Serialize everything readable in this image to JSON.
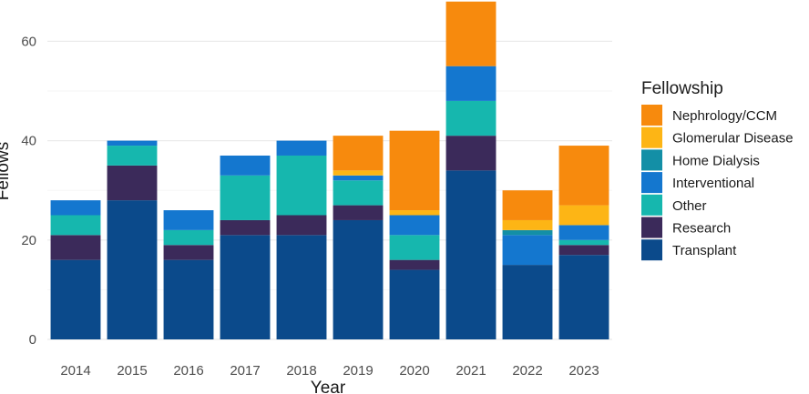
{
  "chart_data": {
    "type": "bar",
    "stacked": true,
    "title": "",
    "xlabel": "Year",
    "ylabel": "Fellows",
    "ylim": [
      0,
      68
    ],
    "yticks": [
      0,
      20,
      40,
      60
    ],
    "grid": true,
    "categories": [
      "2014",
      "2015",
      "2016",
      "2017",
      "2018",
      "2019",
      "2020",
      "2021",
      "2022",
      "2023"
    ],
    "legend_title": "Fellowship",
    "legend_position": "right",
    "series": [
      {
        "name": "Transplant",
        "color": "#0b4a8b",
        "values": [
          16,
          28,
          16,
          21,
          21,
          24,
          14,
          34,
          15,
          17
        ]
      },
      {
        "name": "Research",
        "color": "#3b2a5a",
        "values": [
          5,
          7,
          3,
          3,
          4,
          3,
          2,
          7,
          0,
          2
        ]
      },
      {
        "name": "Other",
        "color": "#16b7ae",
        "values": [
          4,
          4,
          3,
          9,
          12,
          5,
          5,
          7,
          0,
          1
        ]
      },
      {
        "name": "Interventional",
        "color": "#1477cf",
        "values": [
          3,
          1,
          4,
          4,
          3,
          1,
          4,
          7,
          6,
          3
        ]
      },
      {
        "name": "Home Dialysis",
        "color": "#138fa6",
        "values": [
          0,
          0,
          0,
          0,
          0,
          0,
          0,
          0,
          1,
          0
        ]
      },
      {
        "name": "Glomerular Disease",
        "color": "#fdb515",
        "values": [
          0,
          0,
          0,
          0,
          0,
          1,
          1,
          0,
          2,
          4
        ]
      },
      {
        "name": "Nephrology/CCM",
        "color": "#f78a0d",
        "values": [
          0,
          0,
          0,
          0,
          0,
          7,
          16,
          13,
          6,
          12
        ]
      }
    ]
  }
}
